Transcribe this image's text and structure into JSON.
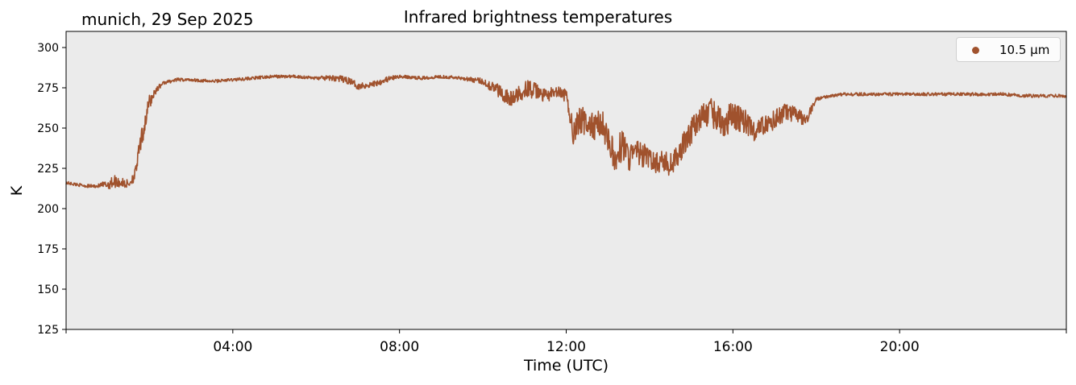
{
  "header": {
    "location": "munich, 29 Sep 2025"
  },
  "colors": {
    "series": "#a0522d",
    "plot_background": "#ebebeb"
  },
  "chart_data": {
    "type": "line",
    "title": "Infrared brightness temperatures",
    "xlabel": "Time (UTC)",
    "ylabel": "K",
    "xlim": [
      "00:00",
      "24:00"
    ],
    "ylim": [
      125,
      310
    ],
    "grid": false,
    "legend_position": "top-right",
    "x_ticks": [
      "04:00",
      "08:00",
      "12:00",
      "16:00",
      "20:00"
    ],
    "y_ticks": [
      125,
      150,
      175,
      200,
      225,
      250,
      275,
      300
    ],
    "series": [
      {
        "name": "10.5 µm",
        "color": "#a0522d",
        "x": [
          "00:00",
          "00:15",
          "00:30",
          "00:45",
          "01:00",
          "01:10",
          "01:20",
          "01:30",
          "01:40",
          "01:45",
          "01:50",
          "01:55",
          "02:00",
          "02:10",
          "02:20",
          "02:40",
          "03:00",
          "03:30",
          "04:00",
          "04:30",
          "05:00",
          "05:30",
          "06:00",
          "06:30",
          "06:50",
          "07:00",
          "07:20",
          "07:40",
          "08:00",
          "08:30",
          "09:00",
          "09:30",
          "10:00",
          "10:20",
          "10:40",
          "10:50",
          "11:00",
          "11:15",
          "11:30",
          "11:45",
          "12:00",
          "12:10",
          "12:20",
          "12:30",
          "12:40",
          "12:50",
          "13:00",
          "13:10",
          "13:20",
          "13:30",
          "13:40",
          "13:50",
          "14:00",
          "14:10",
          "14:20",
          "14:30",
          "14:40",
          "14:50",
          "15:00",
          "15:10",
          "15:20",
          "15:30",
          "15:45",
          "16:00",
          "16:15",
          "16:30",
          "16:45",
          "17:00",
          "17:15",
          "17:30",
          "17:45",
          "18:00",
          "18:20",
          "18:40",
          "19:00",
          "20:00",
          "21:00",
          "22:00",
          "22:30",
          "23:00",
          "23:30",
          "24:00"
        ],
        "y": [
          216,
          215,
          214,
          214,
          215,
          217,
          216,
          215,
          222,
          236,
          246,
          256,
          266,
          274,
          278,
          280,
          280,
          279,
          280,
          281,
          282,
          282,
          281,
          281,
          279,
          276,
          277,
          280,
          282,
          281,
          282,
          281,
          279,
          274,
          268,
          270,
          275,
          273,
          270,
          272,
          270,
          248,
          255,
          253,
          250,
          254,
          245,
          229,
          240,
          232,
          235,
          233,
          231,
          228,
          230,
          227,
          232,
          241,
          248,
          255,
          258,
          260,
          252,
          258,
          255,
          248,
          252,
          255,
          260,
          258,
          255,
          268,
          270,
          271,
          271,
          271,
          271,
          271,
          271,
          270,
          270,
          270
        ],
        "noise_amplitude": [
          1,
          1,
          1,
          1,
          3,
          4,
          3,
          3,
          4,
          5,
          6,
          6,
          5,
          2,
          1,
          1,
          1,
          1,
          1,
          1,
          1,
          1,
          1,
          2,
          2,
          2,
          2,
          2,
          1,
          1,
          1,
          1,
          2,
          4,
          5,
          5,
          6,
          5,
          4,
          4,
          4,
          8,
          9,
          9,
          9,
          9,
          9,
          10,
          10,
          9,
          8,
          8,
          7,
          7,
          7,
          7,
          7,
          8,
          8,
          8,
          8,
          9,
          9,
          9,
          8,
          7,
          6,
          6,
          6,
          5,
          4,
          1,
          1,
          1,
          1,
          1,
          1,
          1,
          1,
          1,
          1,
          1
        ]
      }
    ]
  }
}
